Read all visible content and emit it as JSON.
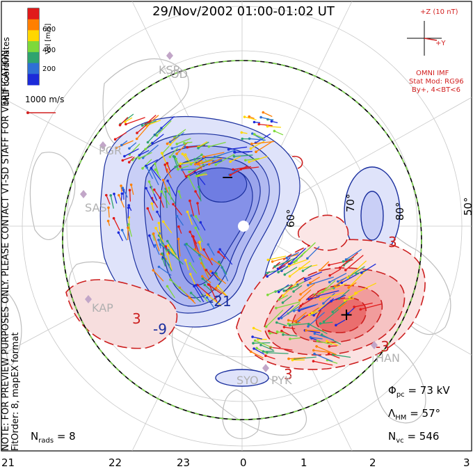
{
  "title": "29/Nov/2002 01:00-01:02 UT",
  "notice_lines": [
    "NOTE: FOR PREVIEW PURPOSES ONLY. PLEASE CONTACT VT-SD STAFF FOR VERIFICATION.",
    "FitOrder: 8, mapEX format"
  ],
  "coordinates_label": "MLT coordinates",
  "velocity_legend": {
    "title": "Vel [m/s]",
    "ticks": [
      "600",
      "400",
      "200"
    ],
    "colors": [
      "#e01a1a",
      "#ff7f00",
      "#ffd700",
      "#7dd93a",
      "#2fa36f",
      "#2f6fd6",
      "#1c2bd9"
    ],
    "scale_label": "1000 m/s",
    "scale_color": "#d21f1f"
  },
  "imf": {
    "axis_z": "+Z (10 nT)",
    "axis_y": "+Y",
    "source": "OMNI IMF",
    "model": "Stat Mod: RG96",
    "condition": "By+, 4<BT<6",
    "color": "#d21f1f"
  },
  "stations": [
    "KSR",
    "OD",
    "PGR",
    "SAS",
    "KAP",
    "SYO",
    "PYK",
    "HAN"
  ],
  "latitude_labels": [
    "60°",
    "70°",
    "80°",
    "50°"
  ],
  "contour_labels": [
    "-9",
    "-21",
    "3",
    "3",
    "3",
    "-3"
  ],
  "markers": {
    "min": "−",
    "max": "+"
  },
  "stats": {
    "phi_pc": "Φ",
    "phi_pc_sub": "pc",
    "phi_pc_value": "= 73 kV",
    "lambda_hm": "Λ",
    "lambda_hm_sub": "HM",
    "lambda_hm_value": "= 57°",
    "n_vc": "N",
    "n_vc_sub": "vc",
    "n_vc_value": "= 546",
    "n_rads": "N",
    "n_rads_sub": "rads",
    "n_rads_value": "= 8"
  },
  "mlt_ticks": [
    "21",
    "22",
    "23",
    "0",
    "1",
    "2",
    "3"
  ],
  "colors": {
    "negative_fill": "#7b86e6",
    "positive_fill": "#e84646",
    "negative_line": "#1a2f9e",
    "positive_line": "#cc1f1f",
    "hm_boundary": "#7ad14b"
  }
}
